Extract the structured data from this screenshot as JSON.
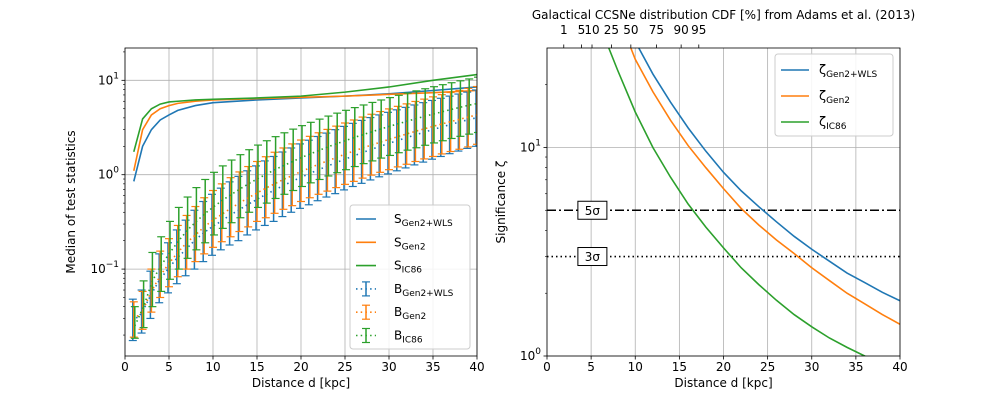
{
  "chart_data": [
    {
      "type": "line",
      "xlabel": "Distance d [kpc]",
      "ylabel": "Median of test statistics",
      "xlim": [
        0,
        40
      ],
      "ylim": [
        0.012,
        22
      ],
      "yscale": "log",
      "grid": true,
      "legend_position": "lower-right",
      "x_ticks": [
        0,
        5,
        10,
        15,
        20,
        25,
        30,
        35,
        40
      ],
      "y_ticks": [
        {
          "value": 0.1,
          "base": "10",
          "exp": "−1"
        },
        {
          "value": 1,
          "base": "10",
          "exp": "0"
        },
        {
          "value": 10,
          "base": "10",
          "exp": "1"
        }
      ],
      "series": [
        {
          "name": "S",
          "sub": "Gen2+WLS",
          "color": "#1f77b4",
          "style": "solid",
          "x": [
            1,
            2,
            3,
            4,
            5,
            6,
            8,
            10,
            15,
            20,
            25,
            30,
            35,
            40
          ],
          "values": [
            0.85,
            2.0,
            3.0,
            3.8,
            4.3,
            4.8,
            5.4,
            5.8,
            6.2,
            6.5,
            6.8,
            7.2,
            7.8,
            8.5
          ]
        },
        {
          "name": "S",
          "sub": "Gen2",
          "color": "#ff7f0e",
          "style": "solid",
          "x": [
            1,
            2,
            3,
            4,
            5,
            6,
            8,
            10,
            15,
            20,
            25,
            30,
            35,
            40
          ],
          "values": [
            1.1,
            3.0,
            4.3,
            5.0,
            5.4,
            5.7,
            6.0,
            6.2,
            6.4,
            6.6,
            6.8,
            7.1,
            7.4,
            7.8
          ]
        },
        {
          "name": "S",
          "sub": "IC86",
          "color": "#2ca02c",
          "style": "solid",
          "x": [
            1,
            2,
            3,
            4,
            5,
            6,
            8,
            10,
            15,
            20,
            25,
            30,
            35,
            40
          ],
          "values": [
            1.75,
            3.9,
            5.0,
            5.6,
            5.9,
            6.0,
            6.2,
            6.3,
            6.5,
            6.8,
            7.5,
            8.5,
            10.0,
            11.5
          ]
        },
        {
          "name": "B",
          "sub": "Gen2+WLS",
          "color": "#1f77b4",
          "style": "dotted",
          "errorbars": true,
          "x": [
            1,
            2,
            3,
            4,
            5,
            6,
            7,
            8,
            9,
            10,
            11,
            12,
            13,
            14,
            15,
            16,
            17,
            18,
            19,
            20,
            21,
            22,
            23,
            24,
            25,
            26,
            27,
            28,
            29,
            30,
            31,
            32,
            33,
            34,
            35,
            36,
            37,
            38,
            39,
            40
          ],
          "values": [
            0.028,
            0.034,
            0.052,
            0.076,
            0.1,
            0.13,
            0.16,
            0.2,
            0.24,
            0.28,
            0.32,
            0.37,
            0.42,
            0.48,
            0.54,
            0.61,
            0.68,
            0.76,
            0.84,
            0.93,
            1.02,
            1.12,
            1.22,
            1.33,
            1.45,
            1.57,
            1.7,
            1.84,
            1.98,
            2.13,
            2.29,
            2.45,
            2.62,
            2.8,
            2.99,
            3.18,
            3.38,
            3.59,
            3.8,
            4.0
          ],
          "err_low": [
            0.0175,
            0.021,
            0.03,
            0.044,
            0.056,
            0.07,
            0.085,
            0.1,
            0.12,
            0.14,
            0.16,
            0.18,
            0.2,
            0.23,
            0.26,
            0.29,
            0.32,
            0.36,
            0.4,
            0.44,
            0.48,
            0.53,
            0.58,
            0.63,
            0.69,
            0.75,
            0.81,
            0.88,
            0.95,
            1.02,
            1.1,
            1.18,
            1.27,
            1.36,
            1.46,
            1.56,
            1.67,
            1.78,
            1.9,
            2.0
          ],
          "err_high": [
            0.048,
            0.06,
            0.095,
            0.145,
            0.19,
            0.26,
            0.33,
            0.42,
            0.52,
            0.62,
            0.72,
            0.84,
            0.96,
            1.1,
            1.24,
            1.4,
            1.56,
            1.74,
            1.92,
            2.12,
            2.32,
            2.54,
            2.76,
            3.0,
            3.25,
            3.5,
            3.76,
            4.03,
            4.3,
            4.58,
            4.87,
            5.17,
            5.48,
            5.8,
            6.12,
            6.45,
            6.8,
            7.15,
            7.5,
            7.9
          ]
        },
        {
          "name": "B",
          "sub": "Gen2",
          "color": "#ff7f0e",
          "style": "dotted",
          "errorbars": true,
          "x": [
            1,
            2,
            3,
            4,
            5,
            6,
            7,
            8,
            9,
            10,
            11,
            12,
            13,
            14,
            15,
            16,
            17,
            18,
            19,
            20,
            21,
            22,
            23,
            24,
            25,
            26,
            27,
            28,
            29,
            30,
            31,
            32,
            33,
            34,
            35,
            36,
            37,
            38,
            39,
            40
          ],
          "values": [
            0.029,
            0.036,
            0.058,
            0.085,
            0.115,
            0.15,
            0.19,
            0.23,
            0.28,
            0.33,
            0.38,
            0.44,
            0.5,
            0.57,
            0.64,
            0.72,
            0.8,
            0.89,
            0.98,
            1.08,
            1.18,
            1.29,
            1.4,
            1.52,
            1.65,
            1.78,
            1.92,
            2.06,
            2.21,
            2.37,
            2.53,
            2.7,
            2.88,
            3.06,
            3.25,
            3.45,
            3.65,
            3.86,
            4.08,
            4.3
          ],
          "err_low": [
            0.019,
            0.023,
            0.035,
            0.05,
            0.065,
            0.083,
            0.1,
            0.12,
            0.145,
            0.17,
            0.195,
            0.22,
            0.25,
            0.28,
            0.32,
            0.35,
            0.39,
            0.43,
            0.47,
            0.52,
            0.57,
            0.62,
            0.67,
            0.73,
            0.79,
            0.85,
            0.92,
            0.99,
            1.06,
            1.13,
            1.21,
            1.29,
            1.38,
            1.47,
            1.56,
            1.66,
            1.76,
            1.86,
            1.97,
            2.1
          ],
          "err_high": [
            0.045,
            0.058,
            0.1,
            0.155,
            0.21,
            0.29,
            0.37,
            0.46,
            0.57,
            0.68,
            0.8,
            0.93,
            1.07,
            1.22,
            1.38,
            1.55,
            1.73,
            1.92,
            2.12,
            2.33,
            2.55,
            2.78,
            3.02,
            3.27,
            3.53,
            3.8,
            4.08,
            4.37,
            4.67,
            4.98,
            5.3,
            5.63,
            5.97,
            6.32,
            6.68,
            7.05,
            7.43,
            7.82,
            8.22,
            8.6
          ]
        },
        {
          "name": "B",
          "sub": "IC86",
          "color": "#2ca02c",
          "style": "dotted",
          "errorbars": true,
          "x": [
            1,
            2,
            3,
            4,
            5,
            6,
            7,
            8,
            9,
            10,
            11,
            12,
            13,
            14,
            15,
            16,
            17,
            18,
            19,
            20,
            21,
            22,
            23,
            24,
            25,
            26,
            27,
            28,
            29,
            30,
            31,
            32,
            33,
            34,
            35,
            36,
            37,
            38,
            39,
            40
          ],
          "values": [
            0.025,
            0.04,
            0.075,
            0.11,
            0.15,
            0.2,
            0.26,
            0.32,
            0.39,
            0.46,
            0.54,
            0.62,
            0.71,
            0.81,
            0.91,
            1.02,
            1.14,
            1.26,
            1.39,
            1.53,
            1.67,
            1.82,
            1.98,
            2.14,
            2.31,
            2.49,
            2.67,
            2.86,
            3.06,
            3.27,
            3.48,
            3.7,
            3.93,
            4.17,
            4.41,
            4.66,
            4.92,
            5.19,
            5.46,
            5.7
          ],
          "err_low": [
            0.0185,
            0.024,
            0.04,
            0.058,
            0.078,
            0.1,
            0.13,
            0.16,
            0.19,
            0.23,
            0.27,
            0.31,
            0.35,
            0.4,
            0.45,
            0.5,
            0.56,
            0.62,
            0.68,
            0.75,
            0.82,
            0.89,
            0.97,
            1.05,
            1.13,
            1.22,
            1.31,
            1.4,
            1.5,
            1.6,
            1.71,
            1.82,
            1.93,
            2.05,
            2.17,
            2.29,
            2.42,
            2.55,
            2.69,
            2.8
          ],
          "err_high": [
            0.04,
            0.075,
            0.15,
            0.22,
            0.32,
            0.45,
            0.58,
            0.73,
            0.89,
            1.06,
            1.24,
            1.43,
            1.63,
            1.84,
            2.06,
            2.29,
            2.53,
            2.78,
            3.04,
            3.31,
            3.59,
            3.88,
            4.18,
            4.49,
            4.81,
            5.14,
            5.48,
            5.83,
            6.19,
            6.56,
            6.94,
            7.33,
            7.73,
            8.14,
            8.56,
            8.99,
            9.43,
            9.88,
            10.34,
            10.8
          ]
        }
      ]
    },
    {
      "type": "line",
      "xlabel": "Distance d [kpc]",
      "ylabel": "Significance ζ",
      "xlim": [
        0,
        40
      ],
      "ylim": [
        1,
        30
      ],
      "yscale": "log",
      "grid": true,
      "legend_position": "top-right",
      "x_ticks": [
        0,
        5,
        10,
        15,
        20,
        25,
        30,
        35,
        40
      ],
      "y_ticks": [
        {
          "value": 1,
          "base": "10",
          "exp": "0"
        },
        {
          "value": 10,
          "base": "10",
          "exp": "1"
        }
      ],
      "top_axis": {
        "title": "Galactical CCSNe distribution CDF [%] from Adams et al. (2013)",
        "ticks": [
          {
            "label": "1",
            "x": 1.9
          },
          {
            "label": "5",
            "x": 3.9
          },
          {
            "label": "10",
            "x": 5.1
          },
          {
            "label": "25",
            "x": 7.3
          },
          {
            "label": "50",
            "x": 9.5
          },
          {
            "label": "75",
            "x": 12.4
          },
          {
            "label": "90",
            "x": 15.2
          },
          {
            "label": "95",
            "x": 17.2
          }
        ]
      },
      "reference_lines": [
        {
          "label": "5σ",
          "y": 5.0,
          "style": "dashdot"
        },
        {
          "label": "3σ",
          "y": 3.0,
          "style": "dotted"
        }
      ],
      "series": [
        {
          "name": "ζ",
          "sub": "Gen2+WLS",
          "color": "#1f77b4",
          "x": [
            10.4,
            12,
            14,
            16,
            18,
            20,
            22,
            24,
            26,
            28,
            30,
            32,
            34,
            36,
            38,
            40
          ],
          "values": [
            30,
            22.5,
            16.5,
            12.4,
            9.6,
            7.6,
            6.2,
            5.2,
            4.4,
            3.75,
            3.25,
            2.85,
            2.5,
            2.25,
            2.02,
            1.84
          ]
        },
        {
          "name": "ζ",
          "sub": "Gen2",
          "color": "#ff7f0e",
          "x": [
            9.5,
            10,
            12,
            14,
            16,
            18,
            20,
            22,
            24,
            26,
            28,
            30,
            32,
            34,
            36,
            38,
            40
          ],
          "values": [
            30,
            26.5,
            18.5,
            13.5,
            10.2,
            8.0,
            6.35,
            5.1,
            4.25,
            3.6,
            3.1,
            2.65,
            2.3,
            2.0,
            1.78,
            1.58,
            1.42
          ]
        },
        {
          "name": "ζ",
          "sub": "IC86",
          "color": "#2ca02c",
          "x": [
            7.0,
            8,
            10,
            12,
            14,
            16,
            18,
            20,
            22,
            24,
            26,
            28,
            30,
            32,
            34,
            36,
            38,
            40
          ],
          "values": [
            30,
            23.5,
            14.8,
            10.0,
            7.2,
            5.35,
            4.15,
            3.3,
            2.65,
            2.2,
            1.85,
            1.58,
            1.38,
            1.22,
            1.1,
            1.0,
            0.93,
            0.87
          ]
        }
      ]
    }
  ]
}
